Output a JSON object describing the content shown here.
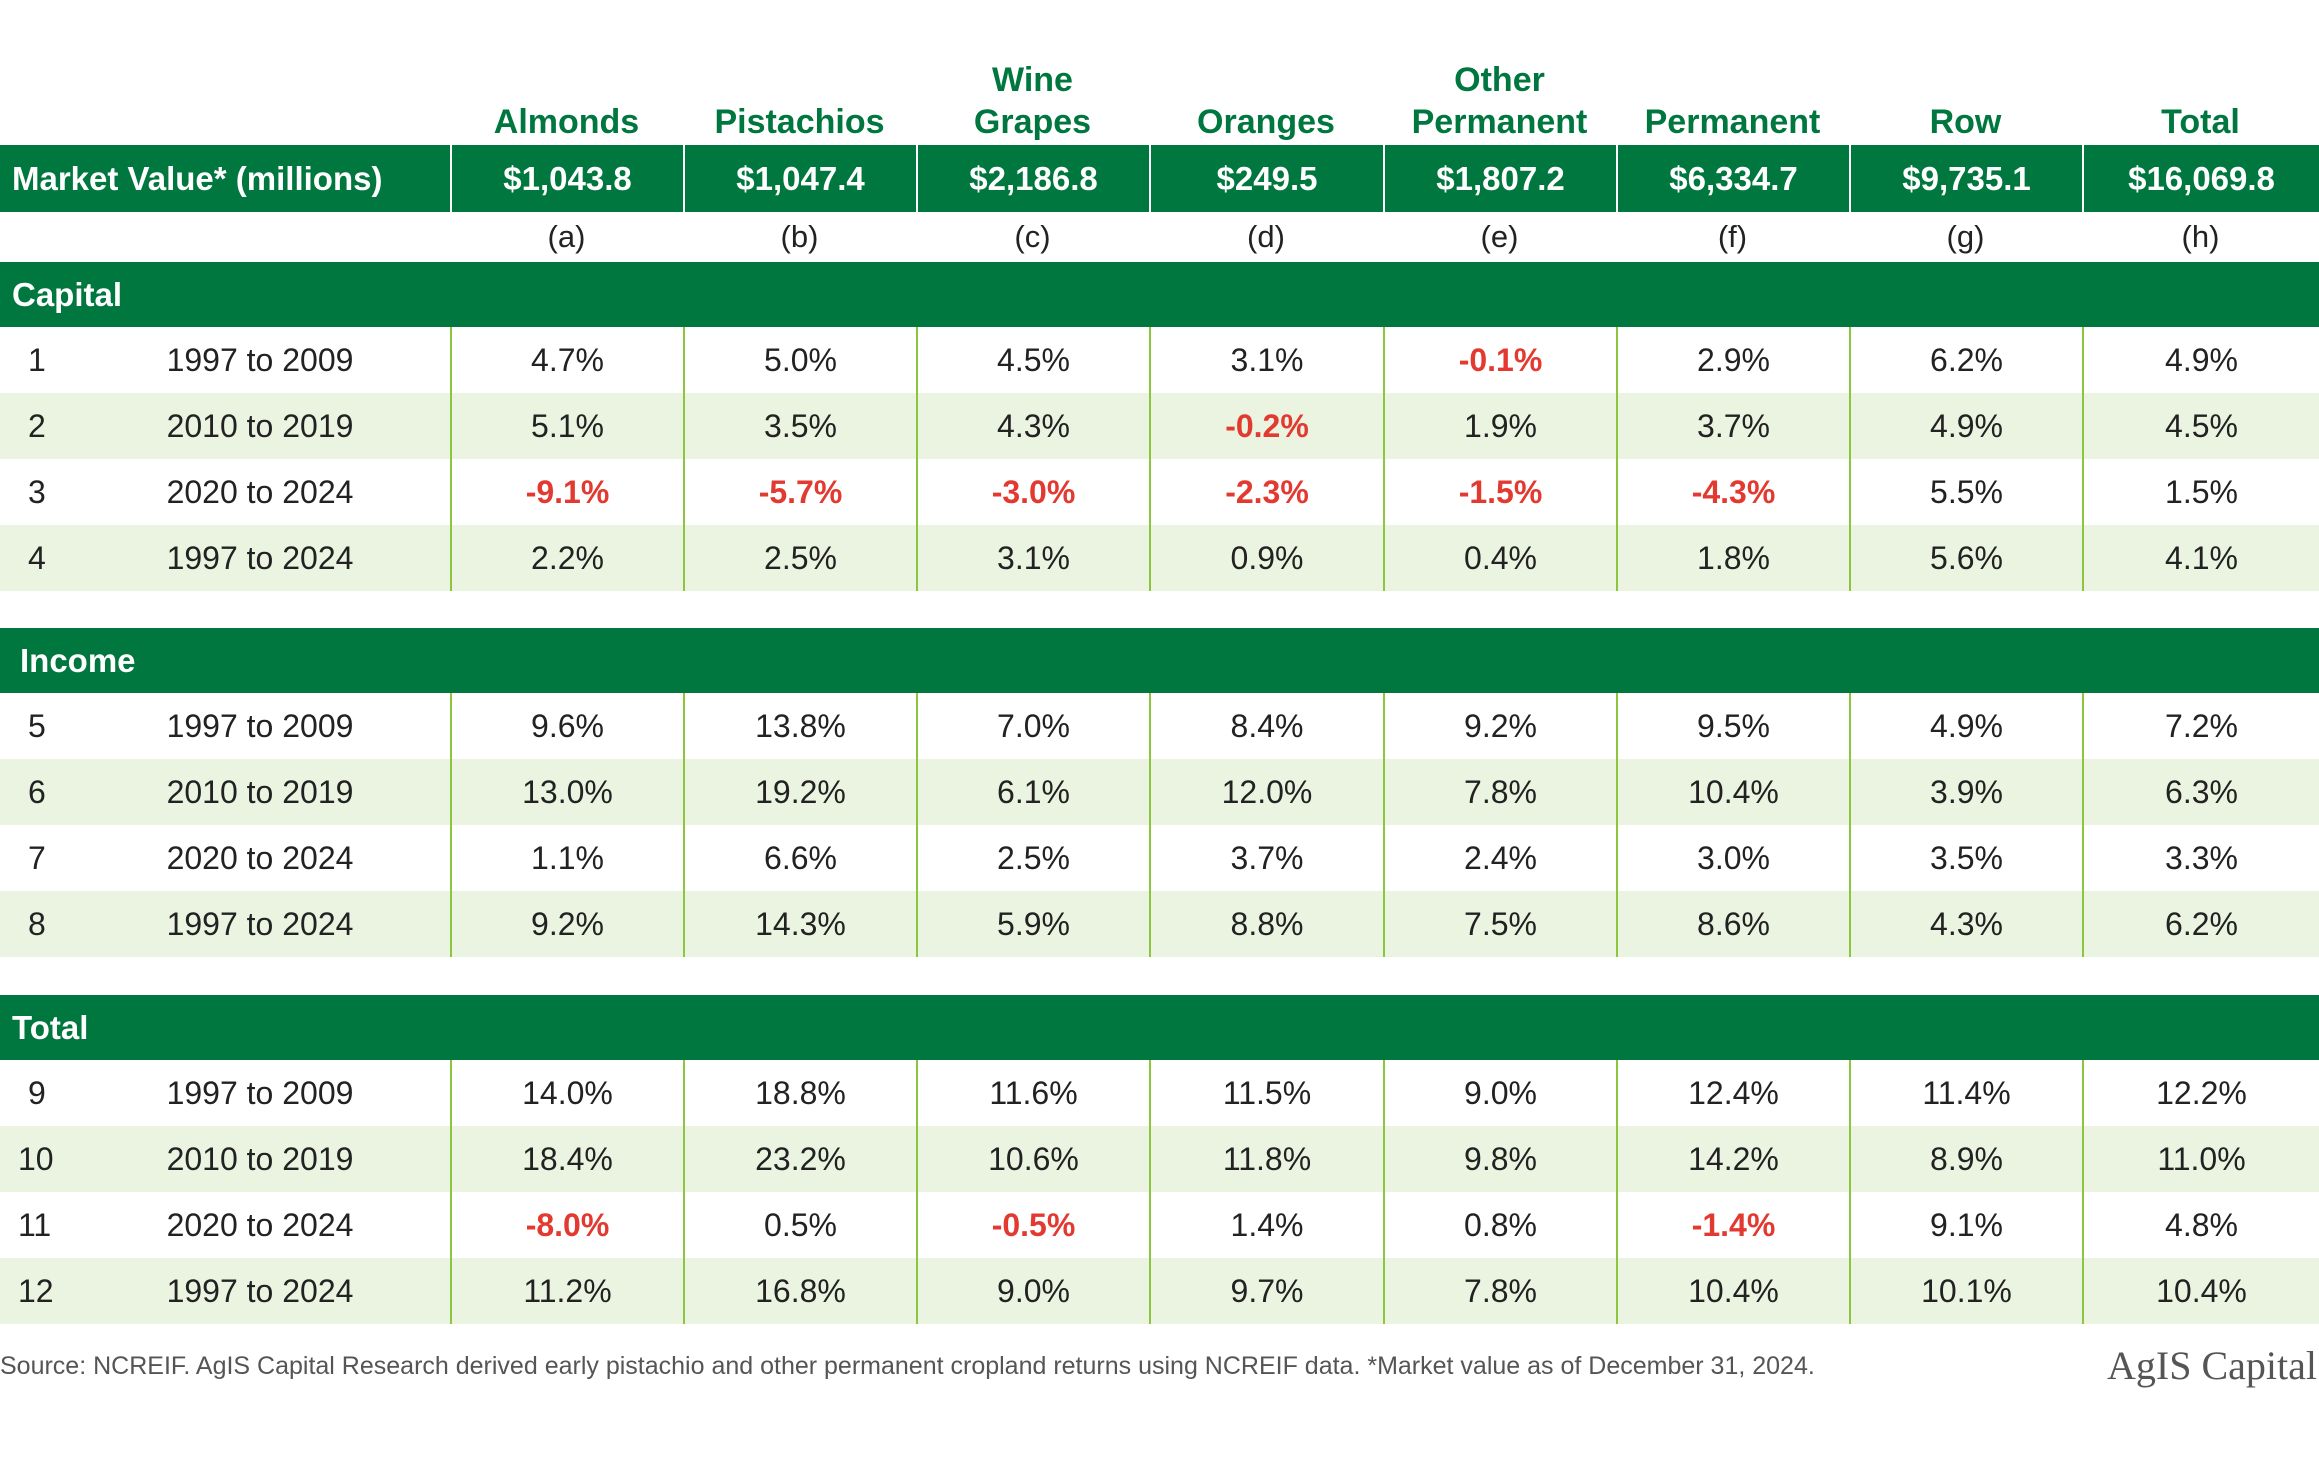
{
  "headers": [
    "",
    "Almonds",
    "Pistachios",
    "Wine\nGrapes",
    "Oranges",
    "Other\nPermanent",
    "Permanent",
    "Row",
    "Total"
  ],
  "market_value": {
    "label": "Market Value* (millions)",
    "values": [
      "$1,043.8",
      "$1,047.4",
      "$2,186.8",
      "$249.5",
      "$1,807.2",
      "$6,334.7",
      "$9,735.1",
      "$16,069.8"
    ]
  },
  "letters": [
    "(a)",
    "(b)",
    "(c)",
    "(d)",
    "(e)",
    "(f)",
    "(g)",
    "(h)"
  ],
  "sections": [
    {
      "title": "Capital",
      "rows": [
        {
          "num": "1",
          "period": "1997 to 2009",
          "values": [
            "4.7%",
            "5.0%",
            "4.5%",
            "3.1%",
            "-0.1%",
            "2.9%",
            "6.2%",
            "4.9%"
          ]
        },
        {
          "num": "2",
          "period": "2010 to 2019",
          "values": [
            "5.1%",
            "3.5%",
            "4.3%",
            "-0.2%",
            "1.9%",
            "3.7%",
            "4.9%",
            "4.5%"
          ]
        },
        {
          "num": "3",
          "period": "2020 to 2024",
          "values": [
            "-9.1%",
            "-5.7%",
            "-3.0%",
            "-2.3%",
            "-1.5%",
            "-4.3%",
            "5.5%",
            "1.5%"
          ]
        },
        {
          "num": "4",
          "period": "1997 to 2024",
          "values": [
            "2.2%",
            "2.5%",
            "3.1%",
            "0.9%",
            "0.4%",
            "1.8%",
            "5.6%",
            "4.1%"
          ]
        }
      ]
    },
    {
      "title": "Income",
      "rows": [
        {
          "num": "5",
          "period": "1997 to 2009",
          "values": [
            "9.6%",
            "13.8%",
            "7.0%",
            "8.4%",
            "9.2%",
            "9.5%",
            "4.9%",
            "7.2%"
          ]
        },
        {
          "num": "6",
          "period": "2010 to 2019",
          "values": [
            "13.0%",
            "19.2%",
            "6.1%",
            "12.0%",
            "7.8%",
            "10.4%",
            "3.9%",
            "6.3%"
          ]
        },
        {
          "num": "7",
          "period": "2020 to 2024",
          "values": [
            "1.1%",
            "6.6%",
            "2.5%",
            "3.7%",
            "2.4%",
            "3.0%",
            "3.5%",
            "3.3%"
          ]
        },
        {
          "num": "8",
          "period": "1997 to 2024",
          "values": [
            "9.2%",
            "14.3%",
            "5.9%",
            "8.8%",
            "7.5%",
            "8.6%",
            "4.3%",
            "6.2%"
          ]
        }
      ]
    },
    {
      "title": "Total",
      "rows": [
        {
          "num": "9",
          "period": "1997 to 2009",
          "values": [
            "14.0%",
            "18.8%",
            "11.6%",
            "11.5%",
            "9.0%",
            "12.4%",
            "11.4%",
            "12.2%"
          ]
        },
        {
          "num": "10",
          "period": "2010 to 2019",
          "values": [
            "18.4%",
            "23.2%",
            "10.6%",
            "11.8%",
            "9.8%",
            "14.2%",
            "8.9%",
            "11.0%"
          ]
        },
        {
          "num": "11",
          "period": "2020 to 2024",
          "values": [
            "-8.0%",
            "0.5%",
            "-0.5%",
            "1.4%",
            "0.8%",
            "-1.4%",
            "9.1%",
            "4.8%"
          ]
        },
        {
          "num": "12",
          "period": "1997 to 2024",
          "values": [
            "11.2%",
            "16.8%",
            "9.0%",
            "9.7%",
            "7.8%",
            "10.4%",
            "10.1%",
            "10.4%"
          ]
        }
      ]
    }
  ],
  "footer": {
    "source": "Source: NCREIF.  AgIS Capital Research derived early pistachio and other permanent cropland returns using NCREIF data.  *Market value as of December 31, 2024.",
    "logo": "AgIS Capital"
  },
  "colors": {
    "header_green": "#00773f",
    "shade_green": "#ebf4e1",
    "divider_green": "#8cc63f",
    "negative_red": "#e23a31"
  }
}
